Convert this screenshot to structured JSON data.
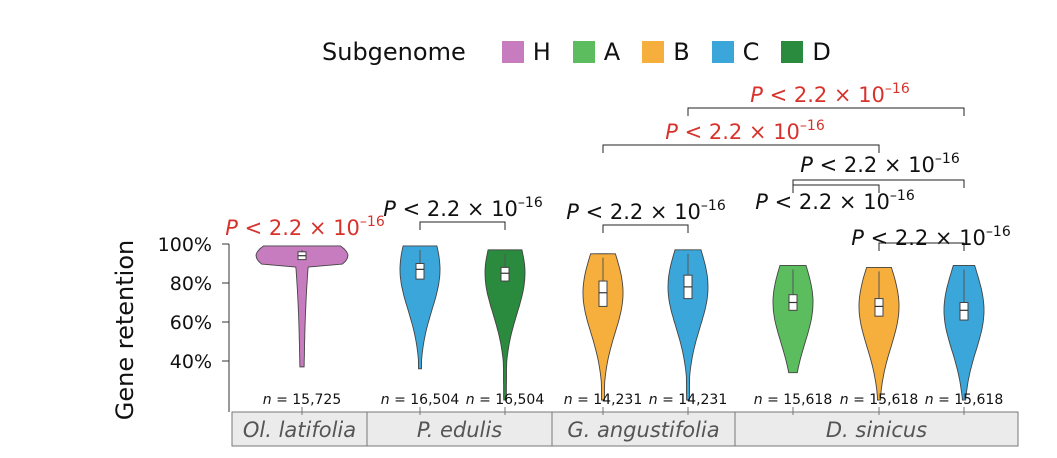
{
  "legend": {
    "title": "Subgenome",
    "items": [
      {
        "label": "H",
        "color": "#c77cbf"
      },
      {
        "label": "A",
        "color": "#5cbd5e"
      },
      {
        "label": "B",
        "color": "#f6ae3c"
      },
      {
        "label": "C",
        "color": "#3aa6da"
      },
      {
        "label": "D",
        "color": "#2a8a3e"
      }
    ]
  },
  "chart_data": {
    "type": "violin",
    "ylabel": "Gene retention",
    "y_ticks": [
      "100%",
      "80%",
      "60%",
      "40%"
    ],
    "y_tick_values": [
      100,
      80,
      60,
      40
    ],
    "ylim": [
      20,
      100
    ],
    "species": [
      "Ol. latifolia",
      "P. edulis",
      "G. angustifolia",
      "D. sinicus"
    ],
    "violins": [
      {
        "species": "Ol. latifolia",
        "subgenome": "H",
        "n_label": "n = 15,725",
        "median": 94,
        "q1": 92,
        "q3": 96,
        "min": 37,
        "max": 99
      },
      {
        "species": "P. edulis",
        "subgenome": "C",
        "n_label": "n = 16,504",
        "median": 87,
        "q1": 82,
        "q3": 90,
        "min": 36,
        "max": 99
      },
      {
        "species": "P. edulis",
        "subgenome": "D",
        "n_label": "n = 16,504",
        "median": 85,
        "q1": 81,
        "q3": 88,
        "min": 20,
        "max": 97
      },
      {
        "species": "G. angustifolia",
        "subgenome": "B",
        "n_label": "n = 14,231",
        "median": 75,
        "q1": 68,
        "q3": 81,
        "min": 20,
        "max": 95
      },
      {
        "species": "G. angustifolia",
        "subgenome": "C",
        "n_label": "n = 14,231",
        "median": 78,
        "q1": 72,
        "q3": 84,
        "min": 20,
        "max": 97
      },
      {
        "species": "D. sinicus",
        "subgenome": "A",
        "n_label": "n = 15,618",
        "median": 70,
        "q1": 66,
        "q3": 74,
        "min": 34,
        "max": 89
      },
      {
        "species": "D. sinicus",
        "subgenome": "B",
        "n_label": "n = 15,618",
        "median": 68,
        "q1": 63,
        "q3": 72,
        "min": 20,
        "max": 88
      },
      {
        "species": "D. sinicus",
        "subgenome": "C",
        "n_label": "n = 15,618",
        "median": 66,
        "q1": 61,
        "q3": 70,
        "min": 20,
        "max": 89
      }
    ],
    "comparisons": [
      {
        "from": 0,
        "to": 0,
        "label_prefix": "P",
        "label_mid": " < 2.2 × 10",
        "label_exp": "–16",
        "color": "#d7322c"
      },
      {
        "from": 1,
        "to": 2,
        "label_prefix": "P",
        "label_mid": " < 2.2 × 10",
        "label_exp": "–16",
        "color": "#111111"
      },
      {
        "from": 3,
        "to": 4,
        "label_prefix": "P",
        "label_mid": " < 2.2 × 10",
        "label_exp": "–16",
        "color": "#111111"
      },
      {
        "from": 5,
        "to": 6,
        "label_prefix": "P",
        "label_mid": " < 2.2 × 10",
        "label_exp": "–16",
        "color": "#111111"
      },
      {
        "from": 6,
        "to": 7,
        "label_prefix": "P",
        "label_mid": " < 2.2 × 10",
        "label_exp": "–16",
        "color": "#111111"
      },
      {
        "from": 5,
        "to": 7,
        "label_prefix": "P",
        "label_mid": " < 2.2 × 10",
        "label_exp": "–16",
        "color": "#111111"
      },
      {
        "from": 3,
        "to": 6,
        "label_prefix": "P",
        "label_mid": " < 2.2 × 10",
        "label_exp": "–16",
        "color": "#d7322c"
      },
      {
        "from": 4,
        "to": 7,
        "label_prefix": "P",
        "label_mid": " < 2.2 × 10",
        "label_exp": "–16",
        "color": "#d7322c"
      }
    ]
  }
}
